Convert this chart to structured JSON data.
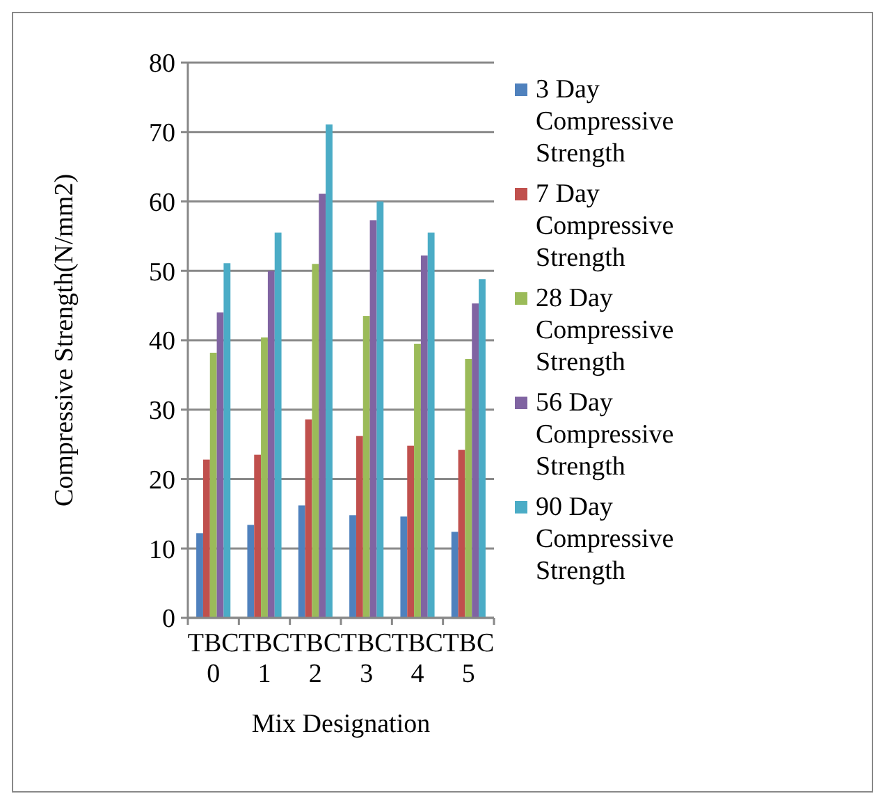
{
  "chart_data": {
    "type": "bar",
    "xlabel": "Mix Designation",
    "ylabel": "Compressive Strength(N/mm2)",
    "categories": [
      "TBC 0",
      "TBC 1",
      "TBC 2",
      "TBC 3",
      "TBC 4",
      "TBC 5"
    ],
    "series": [
      {
        "name": "3 Day Compressive Strength",
        "color": "#4f81bd",
        "values": [
          12.2,
          13.4,
          16.2,
          14.8,
          14.6,
          12.4
        ]
      },
      {
        "name": "7 Day Compressive Strength",
        "color": "#c0504d",
        "values": [
          22.8,
          23.5,
          28.6,
          26.2,
          24.8,
          24.2
        ]
      },
      {
        "name": "28 Day Compressive Strength",
        "color": "#9bbb59",
        "values": [
          38.2,
          40.4,
          51,
          43.5,
          39.5,
          37.3
        ]
      },
      {
        "name": "56 Day Compressive Strength",
        "color": "#8064a2",
        "values": [
          44,
          50,
          61.1,
          57.3,
          52.2,
          45.3
        ]
      },
      {
        "name": "90 Day Compressive Strength",
        "color": "#4bacc6",
        "values": [
          51.1,
          55.5,
          71.1,
          60,
          55.5,
          48.8
        ]
      }
    ],
    "ylim": [
      0,
      80
    ],
    "yticks": [
      0,
      10,
      20,
      30,
      40,
      50,
      60,
      70,
      80
    ],
    "grid": "y",
    "legend": "right"
  }
}
